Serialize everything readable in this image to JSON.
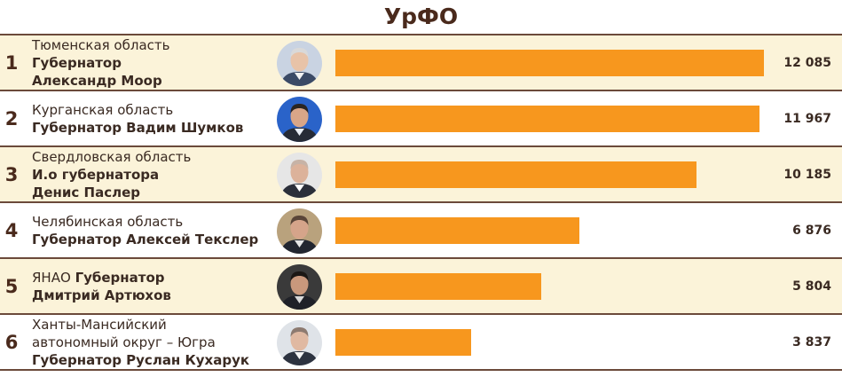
{
  "chart": {
    "title": "УрФО"
  },
  "chart_data": {
    "type": "bar",
    "orientation": "horizontal",
    "title": "УрФО",
    "bar_color": "#f7971e",
    "xlim": [
      0,
      12085
    ],
    "grid": false,
    "categories": [
      "Тюменская область Губернатор Александр Моор",
      "Курганская область Губернатор Вадим Шумков",
      "Свердловская область И.о губернатора Денис Паслер",
      "Челябинская область Губернатор Алексей Текслер",
      "ЯНАО Губернатор Дмитрий Артюхов",
      "Ханты-Мансийский автономный округ – Югра Губернатор Руслан Кухарук"
    ],
    "values": [
      12085,
      11967,
      10185,
      6876,
      5804,
      3837
    ]
  },
  "rows": [
    {
      "rank": "1",
      "region": "Тюменская область",
      "name_line1": "Губернатор",
      "name_line2": "Александр Моор",
      "value_label": "12 085",
      "value": 12085,
      "shaded": true,
      "photo": {
        "bg": "#c9d3e2",
        "skin": "#e8c3a8",
        "hair": "#d9d9d9",
        "suit": "#3b4a66",
        "collar": "#f2f2f2"
      }
    },
    {
      "rank": "2",
      "region": "Курганская область",
      "name_line1": "Губернатор Вадим Шумков",
      "value_label": "11 967",
      "value": 11967,
      "shaded": false,
      "photo": {
        "bg": "#2a63c9",
        "skin": "#d9a688",
        "hair": "#2a2522",
        "suit": "#262b36",
        "collar": "#e9eef6"
      }
    },
    {
      "rank": "3",
      "region": "Свердловская область",
      "name_line1": "И.о губернатора",
      "name_line2": "Денис Паслер",
      "value_label": "10 185",
      "value": 10185,
      "shaded": true,
      "photo": {
        "bg": "#e6e6e6",
        "skin": "#dcb29a",
        "hair": "#c7b3a6",
        "suit": "#2b2f3a",
        "collar": "#ffffff"
      }
    },
    {
      "rank": "4",
      "region": "Челябинская область",
      "name_line1": "Губернатор Алексей Текслер",
      "value_label": "6 876",
      "value": 6876,
      "shaded": false,
      "photo": {
        "bg": "#b9a27d",
        "skin": "#d5a48a",
        "hair": "#5a4538",
        "suit": "#222630",
        "collar": "#e6e6e6"
      }
    },
    {
      "rank": "5",
      "region": "ЯНАО",
      "region_bold": "Губернатор",
      "name_line1": "Дмитрий Артюхов",
      "value_label": "5 804",
      "value": 5804,
      "shaded": true,
      "photo": {
        "bg": "#3a3a3a",
        "skin": "#c9987c",
        "hair": "#1b1714",
        "suit": "#1f2128",
        "collar": "#d8d8d8"
      }
    },
    {
      "rank": "6",
      "region_line1": "Ханты-Мансийский",
      "region_line2": "автономный округ – Югра",
      "name_line1": "Губернатор Руслан Кухарук",
      "value_label": "3 837",
      "value": 3837,
      "shaded": false,
      "photo": {
        "bg": "#dfe3e8",
        "skin": "#e0b9a2",
        "hair": "#8d7a70",
        "suit": "#2d3340",
        "collar": "#f4f4f4"
      }
    }
  ]
}
